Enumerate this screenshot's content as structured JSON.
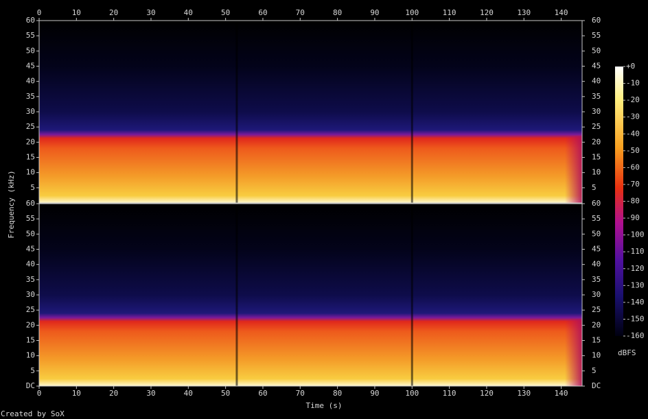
{
  "chart_data": {
    "type": "spectrogram",
    "xlabel": "Time (s)",
    "ylabel": "Frequency (kHz)",
    "footer": "Created by SoX",
    "xlim": [
      0,
      145.6
    ],
    "xticks": [
      0,
      10,
      20,
      30,
      40,
      50,
      60,
      70,
      80,
      90,
      100,
      110,
      120,
      130,
      140
    ],
    "ylim": [
      0,
      60
    ],
    "channels": [
      {
        "yticks": [
          5,
          10,
          15,
          20,
          25,
          30,
          35,
          40,
          45,
          50,
          55,
          60
        ]
      },
      {
        "yticks": [
          {
            "value": 0,
            "label": "DC"
          },
          5,
          10,
          15,
          20,
          25,
          30,
          35,
          40,
          45,
          50,
          55,
          60
        ]
      }
    ],
    "colorbar": {
      "label": "dBFS",
      "lim": [
        -160,
        0
      ],
      "ticks": [
        {
          "value": 0,
          "label": "+0"
        },
        -10,
        -20,
        -30,
        -40,
        -50,
        -60,
        -70,
        -80,
        -90,
        -100,
        -110,
        -120,
        -130,
        -140,
        -150,
        -160
      ]
    }
  }
}
